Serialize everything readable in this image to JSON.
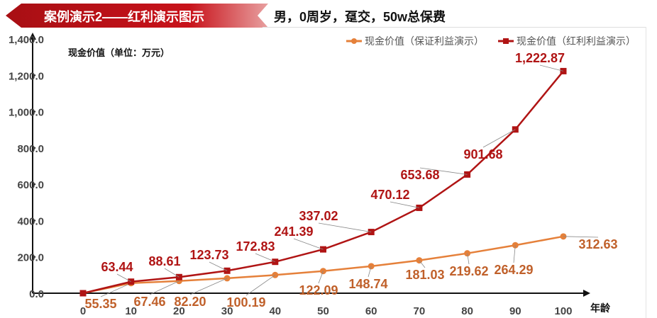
{
  "header": {
    "title": "案例演示2——红利演示图示",
    "subtitle": "男，0周岁，趸交，50w总保费"
  },
  "chart_data": {
    "type": "line",
    "title": "",
    "unit_label": "现金价值（单位：万元）",
    "xlabel": "年龄",
    "ylabel": "",
    "x": [
      0,
      10,
      20,
      30,
      40,
      50,
      60,
      70,
      80,
      90,
      100
    ],
    "ylim": [
      0,
      1400
    ],
    "yticks": [
      "0.0",
      "200.0",
      "400.0",
      "600.0",
      "800.0",
      "1,000.0",
      "1,200.0",
      "1,400.0"
    ],
    "grid": false,
    "legend_position": "top-right",
    "series": [
      {
        "name": "现金价值（保证利益演示）",
        "color": "#e5803a",
        "label_color": "#c0602a",
        "marker": "circle",
        "values": [
          0,
          55.35,
          67.46,
          82.2,
          100.19,
          122.09,
          148.74,
          181.03,
          219.62,
          264.29,
          312.63
        ],
        "labels": [
          "",
          "55.35",
          "67.46",
          "82.20",
          "100.19",
          "122.09",
          "148.74",
          "181.03",
          "219.62",
          "264.29",
          "312.63"
        ]
      },
      {
        "name": "现金价值（红利利益演示）",
        "color": "#b01414",
        "label_color": "#b01414",
        "marker": "square",
        "values": [
          0,
          63.44,
          88.61,
          123.73,
          172.83,
          241.39,
          337.02,
          470.12,
          653.68,
          901.68,
          1222.87
        ],
        "labels": [
          "",
          "63.44",
          "88.61",
          "123.73",
          "172.83",
          "241.39",
          "337.02",
          "470.12",
          "653.68",
          "901.68",
          "1,222.87"
        ]
      }
    ]
  }
}
